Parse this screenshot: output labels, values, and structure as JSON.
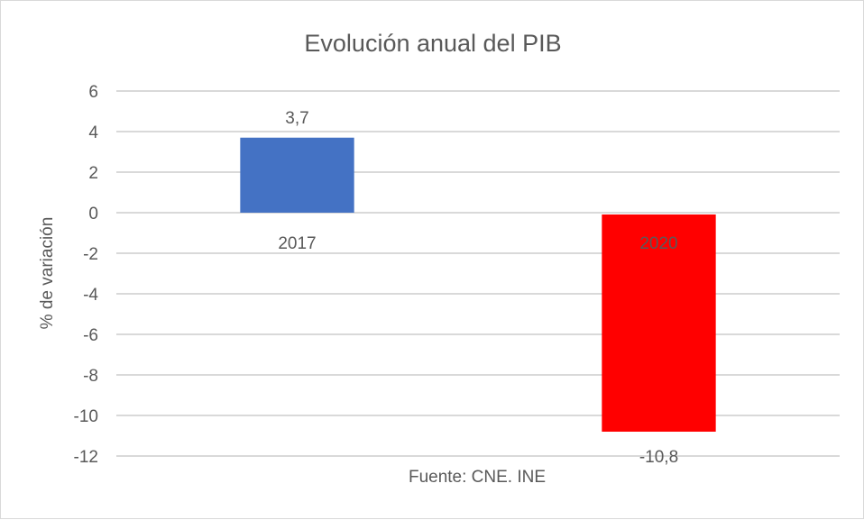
{
  "chart_data": {
    "type": "bar",
    "title": "Evolución anual del PIB",
    "ylabel": "% de variación",
    "xlabel": "",
    "categories": [
      "2017",
      "2020"
    ],
    "values": [
      3.7,
      -10.8
    ],
    "data_labels": [
      "3,7",
      "-10,8"
    ],
    "bar_colors": [
      "#4472c4",
      "#ff0000"
    ],
    "ylim": [
      -12,
      6
    ],
    "yticks": [
      6,
      4,
      2,
      0,
      -2,
      -4,
      -6,
      -8,
      -10,
      -12
    ],
    "grid": true,
    "legend": "none",
    "source_note": "Fuente: CNE. INE"
  }
}
